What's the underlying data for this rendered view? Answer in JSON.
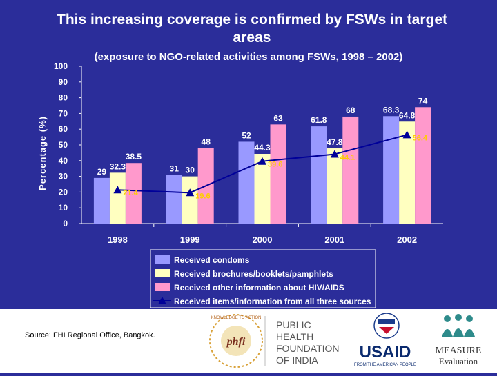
{
  "slide": {
    "title": "This increasing coverage is confirmed by FSWs in target areas",
    "subtitle": "(exposure to NGO-related activities among FSWs, 1998 – 2002)",
    "source": "Source: FHI Regional Office, Bangkok."
  },
  "chart_data": {
    "type": "bar",
    "title": "This increasing coverage is confirmed by FSWs in target areas",
    "subtitle": "(exposure to NGO-related activities among FSWs, 1998 – 2002)",
    "xlabel": "",
    "ylabel": "Percentage (%)",
    "ylim": [
      0,
      100
    ],
    "yticks": [
      0,
      10,
      20,
      30,
      40,
      50,
      60,
      70,
      80,
      90,
      100
    ],
    "categories": [
      "1998",
      "1999",
      "2000",
      "2001",
      "2002"
    ],
    "series": [
      {
        "name": "Received condoms",
        "type": "bar",
        "color": "#9999ff",
        "values": [
          29,
          31,
          52,
          61.8,
          68.3
        ]
      },
      {
        "name": "Received brochures/booklets/pamphlets",
        "type": "bar",
        "color": "#ffffc0",
        "values": [
          32.3,
          30,
          44.3,
          47.8,
          64.8
        ]
      },
      {
        "name": "Received other information about HIV/AIDS",
        "type": "bar",
        "color": "#ff99cc",
        "values": [
          38.5,
          48,
          63,
          68,
          74
        ]
      },
      {
        "name": "Received items/information from all three sources",
        "type": "line",
        "color": "#000099",
        "values": [
          21.4,
          19.6,
          39.6,
          44.1,
          56.4
        ]
      }
    ],
    "bar_label_texts": [
      [
        "29",
        "31",
        "52",
        "61.8",
        "68.3"
      ],
      [
        "32.3",
        "30",
        "44.3",
        "47.8",
        "64.8"
      ],
      [
        "38.5",
        "48",
        "63",
        "68",
        "74"
      ]
    ],
    "line_label_texts": [
      "21.4",
      "19.6",
      "39.6",
      "44.1",
      "56.4"
    ],
    "legend_position": "bottom"
  },
  "logos": {
    "phfi_mark": "phfi",
    "phfi_ring_text": "KNOWLEDGE TO ACTION",
    "phfi_name_lines": [
      "PUBLIC",
      "HEALTH",
      "FOUNDATION",
      "OF INDIA"
    ],
    "usaid_name": "USAID",
    "usaid_tagline": "FROM THE AMERICAN PEOPLE",
    "measure_name": "MEASURE",
    "measure_sub": "Evaluation"
  }
}
